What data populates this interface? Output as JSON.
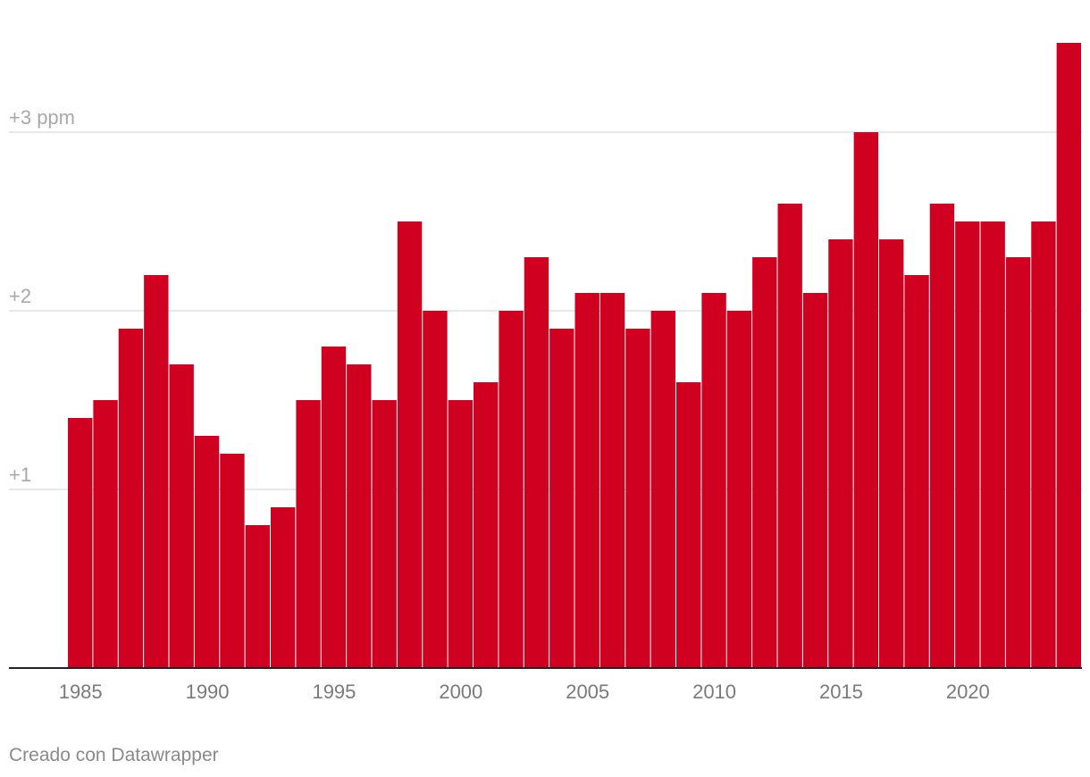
{
  "chart_data": {
    "type": "bar",
    "categories": [
      "1985",
      "1986",
      "1987",
      "1988",
      "1989",
      "1990",
      "1991",
      "1992",
      "1993",
      "1994",
      "1995",
      "1996",
      "1997",
      "1998",
      "1999",
      "2000",
      "2001",
      "2002",
      "2003",
      "2004",
      "2005",
      "2006",
      "2007",
      "2008",
      "2009",
      "2010",
      "2011",
      "2012",
      "2013",
      "2014",
      "2015",
      "2016",
      "2017",
      "2018",
      "2019",
      "2020",
      "2021",
      "2022",
      "2023",
      "2024"
    ],
    "values": [
      1.4,
      1.5,
      1.9,
      2.2,
      1.7,
      1.3,
      1.2,
      0.8,
      0.9,
      1.5,
      1.8,
      1.7,
      1.5,
      2.5,
      2.0,
      1.5,
      1.6,
      2.0,
      2.3,
      1.9,
      2.1,
      2.1,
      1.9,
      2.0,
      1.6,
      2.1,
      2.0,
      2.3,
      2.6,
      2.1,
      2.4,
      3.0,
      2.4,
      2.2,
      2.6,
      2.5,
      2.5,
      2.3,
      2.5,
      3.5
    ],
    "ylim": [
      0,
      3.5
    ],
    "yticks": [
      {
        "value": 1,
        "label": "+1"
      },
      {
        "value": 2,
        "label": "+2"
      },
      {
        "value": 3,
        "label": "+3 ppm"
      }
    ],
    "xticks": [
      "1985",
      "1990",
      "1995",
      "2000",
      "2005",
      "2010",
      "2015",
      "2020"
    ],
    "color": "#cf0020",
    "grid": true
  },
  "footer": {
    "credit": "Creado con Datawrapper"
  }
}
